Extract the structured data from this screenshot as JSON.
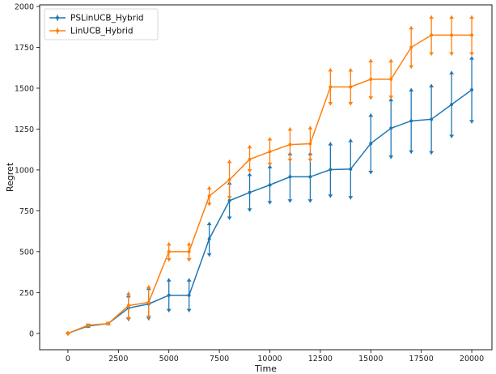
{
  "chart_data": {
    "type": "line",
    "title": "",
    "xlabel": "Time",
    "ylabel": "Regret",
    "xlim": [
      -1400,
      21000
    ],
    "ylim": [
      -100,
      2010
    ],
    "xticks": [
      0,
      2500,
      5000,
      7500,
      10000,
      12500,
      15000,
      17500,
      20000
    ],
    "yticks": [
      0,
      250,
      500,
      750,
      1000,
      1250,
      1500,
      1750,
      2000
    ],
    "grid": false,
    "legend_position": "top-left",
    "x": [
      0,
      1000,
      2000,
      3000,
      4000,
      5000,
      6000,
      7000,
      8000,
      9000,
      10000,
      11000,
      12000,
      13000,
      14000,
      15000,
      16000,
      17000,
      18000,
      19000,
      20000
    ],
    "series": [
      {
        "name": "PSLinUCB_Hybrid",
        "color": "#1f77b4",
        "values": [
          0,
          45,
          60,
          155,
          180,
          233,
          233,
          578,
          812,
          862,
          908,
          958,
          958,
          1002,
          1005,
          1162,
          1255,
          1300,
          1310,
          1400,
          1490
        ],
        "err_low": [
          0,
          35,
          50,
          75,
          80,
          130,
          130,
          470,
          695,
          745,
          790,
          800,
          800,
          830,
          820,
          975,
          1068,
          1100,
          1095,
          1195,
          1285
        ],
        "err_high": [
          0,
          55,
          70,
          240,
          285,
          337,
          337,
          682,
          930,
          982,
          1030,
          1110,
          1110,
          1170,
          1190,
          1345,
          1440,
          1500,
          1525,
          1605,
          1695
        ]
      },
      {
        "name": "LinUCB_Hybrid",
        "color": "#ff7f0e",
        "values": [
          0,
          50,
          60,
          170,
          190,
          500,
          500,
          840,
          940,
          1065,
          1112,
          1155,
          1160,
          1508,
          1508,
          1555,
          1555,
          1750,
          1825,
          1825,
          1825
        ],
        "err_low": [
          -15,
          40,
          50,
          80,
          90,
          440,
          440,
          780,
          820,
          985,
          1025,
          1050,
          1050,
          1395,
          1395,
          1430,
          1435,
          1620,
          1700,
          1700,
          1700
        ],
        "err_high": [
          15,
          60,
          72,
          255,
          295,
          557,
          557,
          900,
          1062,
          1152,
          1200,
          1260,
          1268,
          1622,
          1622,
          1678,
          1678,
          1880,
          1945,
          1945,
          1945
        ]
      }
    ]
  }
}
